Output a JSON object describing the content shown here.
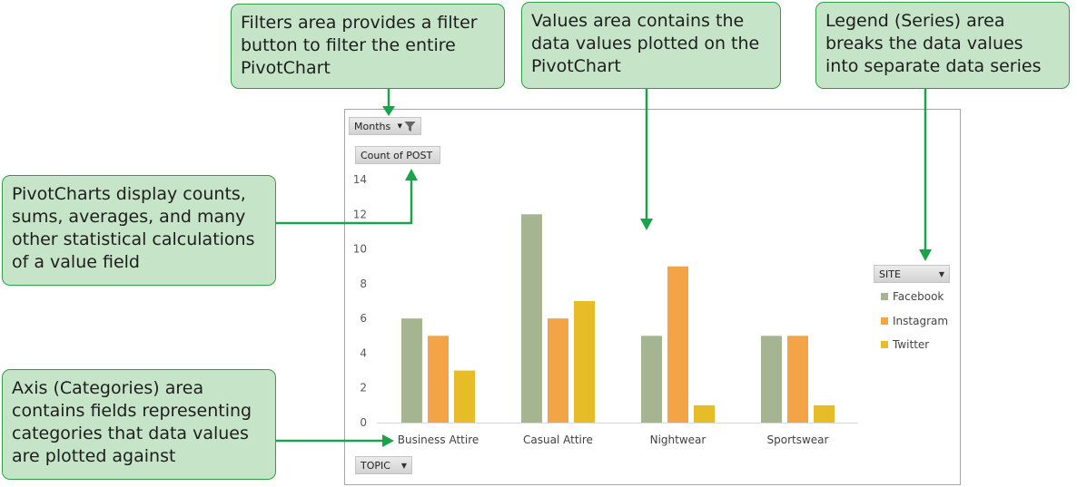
{
  "callouts": {
    "filters": "Filters area provides a filter button to filter the entire PivotChart",
    "values": "Values area contains the data values plotted on the PivotChart",
    "legend": "Legend (Series) area breaks the data values into separate data series",
    "pivot": "PivotCharts display counts, sums, averages, and many other statistical calculations of a value field",
    "axis": "Axis (Categories) area contains fields representing categories that data values are plotted against"
  },
  "buttons": {
    "filter_label": "Months",
    "values_label": "Count of POST",
    "axis_label": "TOPIC",
    "legend_label": "SITE"
  },
  "icons": {
    "filter": "funnel-filter-icon",
    "dropdown": "dropdown-arrow-icon"
  },
  "chart_data": {
    "type": "bar",
    "categories": [
      "Business Attire",
      "Casual Attire",
      "Nightwear",
      "Sportswear"
    ],
    "series": [
      {
        "name": "Facebook",
        "values": [
          6,
          12,
          5,
          5
        ],
        "color": "#a5b592"
      },
      {
        "name": "Instagram",
        "values": [
          5,
          6,
          9,
          5
        ],
        "color": "#f3a447"
      },
      {
        "name": "Twitter",
        "values": [
          3,
          7,
          1,
          1
        ],
        "color": "#e7bc29"
      }
    ],
    "ylim": [
      0,
      14
    ],
    "yticks": [
      0,
      2,
      4,
      6,
      8,
      10,
      12,
      14
    ],
    "grid": false,
    "legend_position": "right",
    "title": "",
    "xlabel": "",
    "ylabel": ""
  },
  "colors": {
    "callout_fill": "#c6e5c8",
    "callout_border": "#2ea043",
    "arrow": "#1aa34a"
  }
}
